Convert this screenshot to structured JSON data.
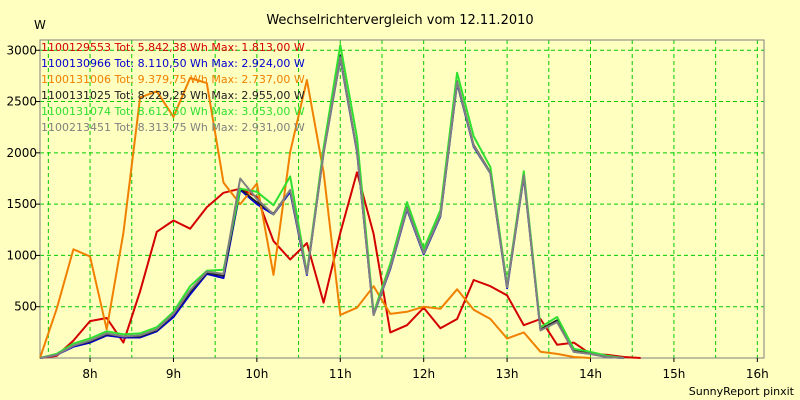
{
  "chart_data": {
    "type": "line",
    "title": "Wechselrichtervergleich vom 12.11.2010",
    "ylabel": "W",
    "xlabel": "",
    "credit": "SunnyReport pinxit",
    "ylim": [
      0,
      3100
    ],
    "xlim": [
      7.4,
      16.08
    ],
    "yticks": [
      500,
      1000,
      1500,
      2000,
      2500,
      3000
    ],
    "xticks": [
      {
        "value": 8,
        "label": "8h"
      },
      {
        "value": 9,
        "label": "9h"
      },
      {
        "value": 10,
        "label": "10h"
      },
      {
        "value": 11,
        "label": "11h"
      },
      {
        "value": 12,
        "label": "12h"
      },
      {
        "value": 13,
        "label": "13h"
      },
      {
        "value": 14,
        "label": "14h"
      },
      {
        "value": 15,
        "label": "15h"
      },
      {
        "value": 16,
        "label": "16h"
      }
    ],
    "grid": true,
    "legend_position": "top-left",
    "x": [
      7.4,
      7.6,
      7.8,
      8.0,
      8.2,
      8.4,
      8.6,
      8.8,
      9.0,
      9.2,
      9.4,
      9.6,
      9.8,
      10.0,
      10.2,
      10.4,
      10.6,
      10.8,
      11.0,
      11.2,
      11.4,
      11.6,
      11.8,
      12.0,
      12.2,
      12.4,
      12.6,
      12.8,
      13.0,
      13.2,
      13.4,
      13.6,
      13.8,
      14.0,
      14.2,
      14.4,
      14.6,
      14.8,
      15.0,
      15.2,
      15.4,
      15.6,
      15.8,
      16.0
    ],
    "series": [
      {
        "name": "1100129553",
        "legend": "1100129553 Tot: 5.842,38 Wh Max: 1.813,00 W",
        "color": "#d40000",
        "width": 2,
        "values": [
          0,
          20,
          170,
          360,
          390,
          150,
          650,
          1230,
          1340,
          1260,
          1470,
          1610,
          1650,
          1570,
          1140,
          960,
          1120,
          540,
          1220,
          1810,
          1210,
          250,
          320,
          490,
          290,
          380,
          760,
          700,
          610,
          320,
          380,
          130,
          150,
          40,
          30,
          10,
          0,
          null,
          null,
          null,
          null,
          null,
          null,
          null
        ]
      },
      {
        "name": "1100130966",
        "legend": "1100130966 Tot: 8.110,50 Wh Max: 2.924,00 W",
        "color": "#0000d0",
        "width": 2,
        "values": [
          0,
          30,
          110,
          150,
          220,
          200,
          200,
          260,
          400,
          620,
          820,
          780,
          1640,
          1500,
          1400,
          1620,
          810,
          2000,
          2920,
          2010,
          420,
          870,
          1450,
          1010,
          1380,
          2680,
          2060,
          1800,
          680,
          1770,
          270,
          360,
          60,
          40,
          10,
          0,
          null,
          null,
          null,
          null,
          null,
          null,
          null,
          null
        ]
      },
      {
        "name": "1100131006",
        "legend": "1100131006 Tot: 9.379,75 Wh Max: 2.737,00 W",
        "color": "#f08000",
        "width": 2,
        "values": [
          0,
          480,
          1060,
          990,
          280,
          1220,
          2540,
          2600,
          2350,
          2730,
          2680,
          1710,
          1500,
          1700,
          810,
          2010,
          2710,
          1810,
          420,
          490,
          700,
          430,
          450,
          500,
          480,
          670,
          470,
          380,
          190,
          250,
          60,
          40,
          10,
          0,
          null,
          null,
          null,
          null,
          null,
          null,
          null,
          null,
          null,
          null
        ]
      },
      {
        "name": "1100131025",
        "legend": "1100131025 Tot: 8.229,25 Wh Max: 2.955,00 W",
        "color": "#202020",
        "width": 1.5,
        "values": [
          0,
          30,
          120,
          160,
          230,
          210,
          210,
          270,
          420,
          640,
          830,
          800,
          1650,
          1520,
          1410,
          1640,
          820,
          2010,
          2950,
          2030,
          430,
          880,
          1470,
          1030,
          1400,
          2700,
          2080,
          1810,
          690,
          1780,
          280,
          370,
          70,
          50,
          15,
          0,
          null,
          null,
          null,
          null,
          null,
          null,
          null,
          null
        ]
      },
      {
        "name": "1100131074",
        "legend": "1100131074 Tot: 8.612,50 Wh Max: 3.053,00 W",
        "color": "#30e030",
        "width": 2,
        "values": [
          0,
          40,
          140,
          190,
          260,
          230,
          240,
          300,
          450,
          700,
          850,
          860,
          1650,
          1620,
          1490,
          1770,
          830,
          2050,
          3050,
          2150,
          440,
          920,
          1520,
          1060,
          1440,
          2780,
          2160,
          1860,
          710,
          1820,
          300,
          400,
          90,
          60,
          20,
          0,
          null,
          null,
          null,
          null,
          null,
          null,
          null,
          null
        ]
      },
      {
        "name": "1100213451",
        "legend": "1100213451 Tot: 8.313,75 Wh Max: 2.931,00 W",
        "color": "#808080",
        "width": 2,
        "values": [
          0,
          30,
          120,
          170,
          240,
          210,
          220,
          280,
          430,
          660,
          840,
          820,
          1750,
          1550,
          1400,
          1640,
          820,
          2000,
          2930,
          2020,
          420,
          880,
          1460,
          1020,
          1390,
          2690,
          2070,
          1800,
          690,
          1780,
          270,
          350,
          60,
          40,
          10,
          0,
          null,
          null,
          null,
          null,
          null,
          null,
          null,
          null
        ]
      }
    ]
  }
}
